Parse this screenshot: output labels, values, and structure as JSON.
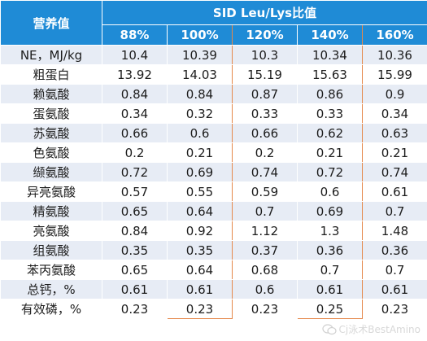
{
  "table": {
    "corner_header": "营养值",
    "group_header": "SID Leu/Lys比值",
    "columns": [
      "88%",
      "100%",
      "120%",
      "140%",
      "160%"
    ],
    "rows": [
      {
        "label": "NE，MJ/kg",
        "values": [
          "10.4",
          "10.39",
          "10.3",
          "10.34",
          "10.36"
        ]
      },
      {
        "label": "粗蛋白",
        "values": [
          "13.92",
          "14.03",
          "15.19",
          "15.63",
          "15.99"
        ]
      },
      {
        "label": "赖氨酸",
        "values": [
          "0.84",
          "0.84",
          "0.87",
          "0.86",
          "0.9"
        ]
      },
      {
        "label": "蛋氨酸",
        "values": [
          "0.34",
          "0.32",
          "0.33",
          "0.33",
          "0.34"
        ]
      },
      {
        "label": "苏氨酸",
        "values": [
          "0.66",
          "0.6",
          "0.66",
          "0.62",
          "0.63"
        ]
      },
      {
        "label": "色氨酸",
        "values": [
          "0.2",
          "0.21",
          "0.2",
          "0.21",
          "0.21"
        ]
      },
      {
        "label": "缬氨酸",
        "values": [
          "0.72",
          "0.69",
          "0.74",
          "0.72",
          "0.74"
        ]
      },
      {
        "label": "异亮氨酸",
        "values": [
          "0.57",
          "0.55",
          "0.59",
          "0.6",
          "0.61"
        ]
      },
      {
        "label": "精氨酸",
        "values": [
          "0.65",
          "0.64",
          "0.7",
          "0.69",
          "0.7"
        ]
      },
      {
        "label": "亮氨酸",
        "values": [
          "0.84",
          "0.92",
          "1.12",
          "1.3",
          "1.48"
        ]
      },
      {
        "label": "组氨酸",
        "values": [
          "0.35",
          "0.35",
          "0.37",
          "0.36",
          "0.36"
        ]
      },
      {
        "label": "苯丙氨酸",
        "values": [
          "0.65",
          "0.64",
          "0.68",
          "0.7",
          "0.7"
        ]
      },
      {
        "label": "总钙，%",
        "values": [
          "0.61",
          "0.61",
          "0.6",
          "0.61",
          "0.61"
        ]
      },
      {
        "label": "有效磷，%",
        "values": [
          "0.23",
          "0.23",
          "0.23",
          "0.25",
          "0.23"
        ]
      }
    ]
  },
  "highlighted_columns": [
    "100%",
    "140%"
  ],
  "colors": {
    "header_bg": "#1f8bd6",
    "stripe_bg": "#e7ecf5",
    "highlight_border": "#e5884a"
  },
  "watermark": {
    "icon": "wechat-icon",
    "text": "Cj泳术BestAmino"
  }
}
